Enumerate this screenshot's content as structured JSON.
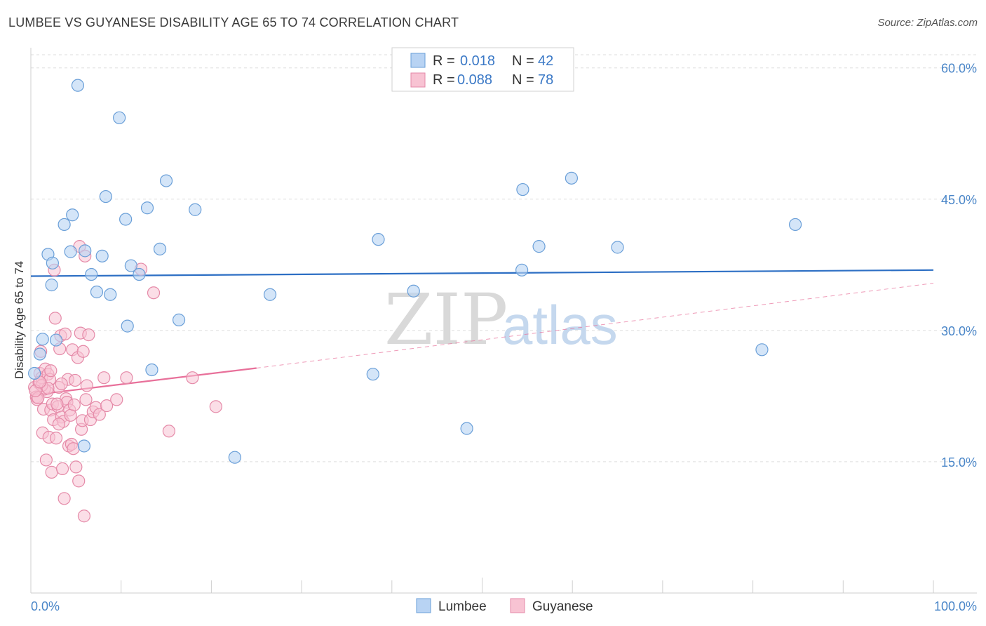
{
  "title": "LUMBEE VS GUYANESE DISABILITY AGE 65 TO 74 CORRELATION CHART",
  "source": "Source: ZipAtlas.com",
  "colors": {
    "lumbee_fill": "#b8d3f3",
    "lumbee_stroke": "#6a9fd8",
    "lumbee_line": "#2d6fc4",
    "guyanese_fill": "#f8c3d3",
    "guyanese_stroke": "#e58aa8",
    "guyanese_line": "#e8709a",
    "axis_label": "#4a86c8",
    "grid": "#dddddd"
  },
  "watermark": {
    "zip": "ZIP",
    "atlas": "atlas"
  },
  "legend": {
    "rows": [
      {
        "series": "Lumbee",
        "r_label": "R =",
        "r_value": "0.018",
        "n_label": "N =",
        "n_value": "42"
      },
      {
        "series": "Guyanese",
        "r_label": "R =",
        "r_value": "0.088",
        "n_label": "N =",
        "n_value": "78"
      }
    ]
  },
  "chart_data": {
    "type": "scatter",
    "title": "LUMBEE VS GUYANESE DISABILITY AGE 65 TO 74 CORRELATION CHART",
    "xlabel": "",
    "ylabel": "Disability Age 65 to 74",
    "xlim": [
      0,
      100
    ],
    "ylim": [
      0,
      61.5
    ],
    "x_tick_labels": [
      "0.0%",
      "100.0%"
    ],
    "y_ticks": [
      15,
      30,
      45,
      60
    ],
    "y_tick_labels": [
      "15.0%",
      "30.0%",
      "45.0%",
      "60.0%"
    ],
    "grid": true,
    "legend_position": "top-center",
    "series": [
      {
        "name": "Lumbee",
        "r": 0.018,
        "n": 42,
        "trend": {
          "x": [
            0,
            100
          ],
          "y": [
            36.2,
            36.9
          ]
        },
        "points": [
          [
            5.2,
            58.0
          ],
          [
            9.8,
            54.3
          ],
          [
            15.0,
            47.1
          ],
          [
            8.3,
            45.3
          ],
          [
            4.6,
            43.2
          ],
          [
            12.9,
            44.0
          ],
          [
            18.2,
            43.8
          ],
          [
            10.5,
            42.7
          ],
          [
            3.7,
            42.1
          ],
          [
            1.9,
            38.7
          ],
          [
            4.4,
            39.0
          ],
          [
            6.0,
            39.1
          ],
          [
            7.9,
            38.5
          ],
          [
            14.3,
            39.3
          ],
          [
            2.4,
            37.7
          ],
          [
            11.1,
            37.4
          ],
          [
            6.7,
            36.4
          ],
          [
            12.0,
            36.4
          ],
          [
            2.3,
            35.2
          ],
          [
            7.3,
            34.4
          ],
          [
            8.8,
            34.1
          ],
          [
            26.5,
            34.1
          ],
          [
            10.7,
            30.5
          ],
          [
            16.4,
            31.2
          ],
          [
            1.3,
            29.0
          ],
          [
            2.8,
            28.9
          ],
          [
            1.0,
            27.3
          ],
          [
            0.4,
            25.1
          ],
          [
            13.4,
            25.5
          ],
          [
            5.9,
            16.8
          ],
          [
            22.6,
            15.5
          ],
          [
            37.9,
            25.0
          ],
          [
            38.5,
            40.4
          ],
          [
            42.4,
            34.5
          ],
          [
            48.3,
            18.8
          ],
          [
            54.5,
            46.1
          ],
          [
            56.3,
            39.6
          ],
          [
            54.4,
            36.9
          ],
          [
            59.9,
            47.4
          ],
          [
            65.0,
            39.5
          ],
          [
            84.7,
            42.1
          ],
          [
            81.0,
            27.8
          ]
        ]
      },
      {
        "name": "Guyanese",
        "r": 0.088,
        "n": 78,
        "trend_solid": {
          "x": [
            0,
            25
          ],
          "y": [
            22.6,
            25.7
          ]
        },
        "trend_dashed": {
          "x": [
            25,
            100
          ],
          "y": [
            25.7,
            35.4
          ]
        },
        "points": [
          [
            0.4,
            23.5
          ],
          [
            0.6,
            22.4
          ],
          [
            0.7,
            22.1
          ],
          [
            0.9,
            24.0
          ],
          [
            1.0,
            25.1
          ],
          [
            1.1,
            27.6
          ],
          [
            1.2,
            24.6
          ],
          [
            1.3,
            18.3
          ],
          [
            1.4,
            21.0
          ],
          [
            1.6,
            25.6
          ],
          [
            1.7,
            15.2
          ],
          [
            1.8,
            23.0
          ],
          [
            1.9,
            25.0
          ],
          [
            2.0,
            17.8
          ],
          [
            2.1,
            24.4
          ],
          [
            2.2,
            20.9
          ],
          [
            2.3,
            13.8
          ],
          [
            2.4,
            21.6
          ],
          [
            2.5,
            19.8
          ],
          [
            2.7,
            31.4
          ],
          [
            2.8,
            17.7
          ],
          [
            3.0,
            21.3
          ],
          [
            3.1,
            23.5
          ],
          [
            3.2,
            27.9
          ],
          [
            3.3,
            29.4
          ],
          [
            3.4,
            20.1
          ],
          [
            3.5,
            14.2
          ],
          [
            3.6,
            19.6
          ],
          [
            3.8,
            29.6
          ],
          [
            3.9,
            22.2
          ],
          [
            4.0,
            21.8
          ],
          [
            4.1,
            24.4
          ],
          [
            4.2,
            16.8
          ],
          [
            4.3,
            20.9
          ],
          [
            4.4,
            20.3
          ],
          [
            4.5,
            17.0
          ],
          [
            4.6,
            27.8
          ],
          [
            4.8,
            21.5
          ],
          [
            5.0,
            14.4
          ],
          [
            5.2,
            26.9
          ],
          [
            5.3,
            12.8
          ],
          [
            5.4,
            39.6
          ],
          [
            5.5,
            29.7
          ],
          [
            5.6,
            18.7
          ],
          [
            5.7,
            19.7
          ],
          [
            5.8,
            27.6
          ],
          [
            5.9,
            8.8
          ],
          [
            6.0,
            38.5
          ],
          [
            6.1,
            22.1
          ],
          [
            6.2,
            23.7
          ],
          [
            6.4,
            29.5
          ],
          [
            6.6,
            19.8
          ],
          [
            6.9,
            20.7
          ],
          [
            7.2,
            21.2
          ],
          [
            7.6,
            20.4
          ],
          [
            8.1,
            24.6
          ],
          [
            8.4,
            21.4
          ],
          [
            9.5,
            22.1
          ],
          [
            10.6,
            24.6
          ],
          [
            12.2,
            37.0
          ],
          [
            13.6,
            34.3
          ],
          [
            15.3,
            18.5
          ],
          [
            17.9,
            24.6
          ],
          [
            20.5,
            21.3
          ],
          [
            1.5,
            23.3
          ],
          [
            2.6,
            36.9
          ],
          [
            3.7,
            10.8
          ],
          [
            4.7,
            16.5
          ],
          [
            0.8,
            22.3
          ],
          [
            1.2,
            23.7
          ],
          [
            1.9,
            23.4
          ],
          [
            2.9,
            21.6
          ],
          [
            3.4,
            23.9
          ],
          [
            0.5,
            23.1
          ],
          [
            4.9,
            24.3
          ],
          [
            1.0,
            24.1
          ],
          [
            2.2,
            25.4
          ],
          [
            3.1,
            19.3
          ]
        ]
      }
    ]
  }
}
